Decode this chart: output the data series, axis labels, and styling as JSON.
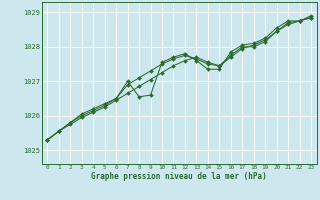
{
  "background_color": "#cce8ee",
  "grid_color": "#ffffff",
  "line_color": "#2d6a2d",
  "marker_color": "#2d6a2d",
  "title": "Graphe pression niveau de la mer (hPa)",
  "xlim": [
    -0.5,
    23.5
  ],
  "ylim": [
    1024.6,
    1029.3
  ],
  "yticks": [
    1025,
    1026,
    1027,
    1028,
    1029
  ],
  "xticks": [
    0,
    1,
    2,
    3,
    4,
    5,
    6,
    7,
    8,
    9,
    10,
    11,
    12,
    13,
    14,
    15,
    16,
    17,
    18,
    19,
    20,
    21,
    22,
    23
  ],
  "series1_x": [
    0,
    1,
    2,
    3,
    4,
    5,
    6,
    7,
    8,
    9,
    10,
    11,
    12,
    13,
    14,
    15,
    16,
    17,
    18,
    19,
    20,
    21,
    22,
    23
  ],
  "series1_y": [
    1025.3,
    1025.55,
    1025.75,
    1025.95,
    1026.1,
    1026.25,
    1026.45,
    1026.65,
    1026.85,
    1027.05,
    1027.25,
    1027.45,
    1027.6,
    1027.7,
    1027.55,
    1027.45,
    1027.7,
    1027.95,
    1028.05,
    1028.2,
    1028.45,
    1028.65,
    1028.75,
    1028.85
  ],
  "series2_x": [
    0,
    1,
    2,
    3,
    4,
    5,
    6,
    7,
    8,
    9,
    10,
    11,
    12,
    13,
    14,
    15,
    16,
    17,
    18,
    19,
    20,
    21,
    22,
    23
  ],
  "series2_y": [
    1025.3,
    1025.55,
    1025.8,
    1026.05,
    1026.2,
    1026.35,
    1026.5,
    1027.0,
    1026.55,
    1026.6,
    1027.55,
    1027.7,
    1027.8,
    1027.6,
    1027.35,
    1027.35,
    1027.85,
    1028.05,
    1028.1,
    1028.25,
    1028.55,
    1028.75,
    1028.75,
    1028.9
  ],
  "series3_x": [
    0,
    1,
    2,
    3,
    4,
    5,
    6,
    7,
    8,
    9,
    10,
    11,
    12,
    13,
    14,
    15,
    16,
    17,
    18,
    19,
    20,
    21,
    22,
    23
  ],
  "series3_y": [
    1025.3,
    1025.55,
    1025.8,
    1026.0,
    1026.15,
    1026.3,
    1026.5,
    1026.9,
    1027.1,
    1027.3,
    1027.5,
    1027.65,
    1027.75,
    1027.65,
    1027.5,
    1027.45,
    1027.75,
    1028.0,
    1028.0,
    1028.15,
    1028.45,
    1028.7,
    1028.75,
    1028.85
  ]
}
